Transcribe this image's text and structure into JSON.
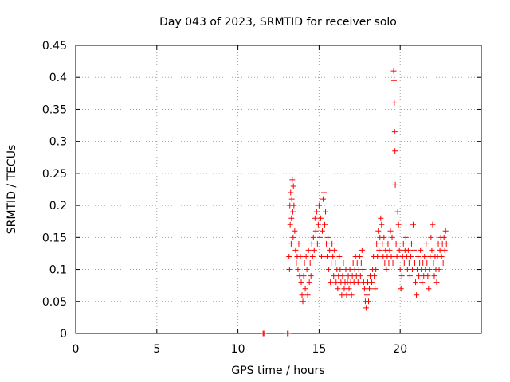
{
  "chart_data": {
    "type": "scatter",
    "title": "Day 043 of 2023, SRMTID for receiver solo",
    "xlabel": "GPS time / hours",
    "ylabel": "SRMTID / TECUs",
    "xlim": [
      0,
      25
    ],
    "ylim": [
      0,
      0.45
    ],
    "x_ticks": [
      "0",
      "5",
      "10",
      "15",
      "20"
    ],
    "x_tick_values": [
      0,
      5,
      10,
      15,
      20
    ],
    "y_ticks": [
      "0",
      "0.05",
      "0.1",
      "0.15",
      "0.2",
      "0.25",
      "0.3",
      "0.35",
      "0.4",
      "0.45"
    ],
    "y_tick_values": [
      0,
      0.05,
      0.1,
      0.15,
      0.2,
      0.25,
      0.3,
      0.35,
      0.4,
      0.45
    ],
    "grid": true,
    "marker": "+",
    "color": "#ff0000",
    "series": [
      {
        "points": [
          [
            11.55,
            0.0
          ],
          [
            11.6,
            0.0
          ],
          [
            13.05,
            0.0
          ],
          [
            13.1,
            0.0
          ],
          [
            13.15,
            0.12
          ],
          [
            13.18,
            0.1
          ],
          [
            13.2,
            0.2
          ],
          [
            13.22,
            0.17
          ],
          [
            13.25,
            0.22
          ],
          [
            13.28,
            0.14
          ],
          [
            13.3,
            0.18
          ],
          [
            13.32,
            0.21
          ],
          [
            13.35,
            0.24
          ],
          [
            13.38,
            0.19
          ],
          [
            13.4,
            0.15
          ],
          [
            13.42,
            0.23
          ],
          [
            13.45,
            0.2
          ],
          [
            13.5,
            0.16
          ],
          [
            13.55,
            0.13
          ],
          [
            13.6,
            0.11
          ],
          [
            13.65,
            0.12
          ],
          [
            13.7,
            0.1
          ],
          [
            13.75,
            0.14
          ],
          [
            13.8,
            0.09
          ],
          [
            13.85,
            0.12
          ],
          [
            13.9,
            0.08
          ],
          [
            13.95,
            0.06
          ],
          [
            14.0,
            0.05
          ],
          [
            14.05,
            0.09
          ],
          [
            14.1,
            0.11
          ],
          [
            14.15,
            0.07
          ],
          [
            14.2,
            0.12
          ],
          [
            14.25,
            0.1
          ],
          [
            14.3,
            0.06
          ],
          [
            14.35,
            0.13
          ],
          [
            14.4,
            0.08
          ],
          [
            14.45,
            0.11
          ],
          [
            14.5,
            0.09
          ],
          [
            14.55,
            0.14
          ],
          [
            14.6,
            0.12
          ],
          [
            14.65,
            0.15
          ],
          [
            14.7,
            0.13
          ],
          [
            14.75,
            0.18
          ],
          [
            14.8,
            0.16
          ],
          [
            14.85,
            0.19
          ],
          [
            14.9,
            0.14
          ],
          [
            14.95,
            0.17
          ],
          [
            15.0,
            0.2
          ],
          [
            15.05,
            0.15
          ],
          [
            15.1,
            0.18
          ],
          [
            15.15,
            0.12
          ],
          [
            15.2,
            0.16
          ],
          [
            15.25,
            0.21
          ],
          [
            15.3,
            0.22
          ],
          [
            15.35,
            0.17
          ],
          [
            15.4,
            0.19
          ],
          [
            15.45,
            0.14
          ],
          [
            15.5,
            0.12
          ],
          [
            15.55,
            0.15
          ],
          [
            15.6,
            0.1
          ],
          [
            15.65,
            0.13
          ],
          [
            15.7,
            0.08
          ],
          [
            15.75,
            0.11
          ],
          [
            15.8,
            0.14
          ],
          [
            15.85,
            0.12
          ],
          [
            15.9,
            0.09
          ],
          [
            15.95,
            0.13
          ],
          [
            16.0,
            0.11
          ],
          [
            16.05,
            0.08
          ],
          [
            16.1,
            0.1
          ],
          [
            16.15,
            0.07
          ],
          [
            16.2,
            0.09
          ],
          [
            16.25,
            0.12
          ],
          [
            16.3,
            0.1
          ],
          [
            16.35,
            0.08
          ],
          [
            16.4,
            0.06
          ],
          [
            16.45,
            0.09
          ],
          [
            16.5,
            0.11
          ],
          [
            16.55,
            0.07
          ],
          [
            16.6,
            0.08
          ],
          [
            16.65,
            0.1
          ],
          [
            16.7,
            0.06
          ],
          [
            16.75,
            0.08
          ],
          [
            16.8,
            0.09
          ],
          [
            16.85,
            0.07
          ],
          [
            16.9,
            0.1
          ],
          [
            16.95,
            0.08
          ],
          [
            17.0,
            0.06
          ],
          [
            17.05,
            0.09
          ],
          [
            17.1,
            0.11
          ],
          [
            17.15,
            0.08
          ],
          [
            17.2,
            0.1
          ],
          [
            17.25,
            0.12
          ],
          [
            17.3,
            0.09
          ],
          [
            17.35,
            0.11
          ],
          [
            17.4,
            0.08
          ],
          [
            17.45,
            0.1
          ],
          [
            17.5,
            0.12
          ],
          [
            17.55,
            0.09
          ],
          [
            17.6,
            0.11
          ],
          [
            17.65,
            0.13
          ],
          [
            17.7,
            0.1
          ],
          [
            17.75,
            0.08
          ],
          [
            17.8,
            0.07
          ],
          [
            17.85,
            0.05
          ],
          [
            17.9,
            0.04
          ],
          [
            17.95,
            0.06
          ],
          [
            18.0,
            0.08
          ],
          [
            18.05,
            0.05
          ],
          [
            18.1,
            0.07
          ],
          [
            18.15,
            0.09
          ],
          [
            18.2,
            0.11
          ],
          [
            18.25,
            0.08
          ],
          [
            18.3,
            0.1
          ],
          [
            18.35,
            0.12
          ],
          [
            18.4,
            0.09
          ],
          [
            18.45,
            0.07
          ],
          [
            18.5,
            0.1
          ],
          [
            18.55,
            0.14
          ],
          [
            18.6,
            0.12
          ],
          [
            18.65,
            0.16
          ],
          [
            18.7,
            0.13
          ],
          [
            18.75,
            0.15
          ],
          [
            18.8,
            0.18
          ],
          [
            18.85,
            0.17
          ],
          [
            18.9,
            0.14
          ],
          [
            18.95,
            0.12
          ],
          [
            19.0,
            0.15
          ],
          [
            19.05,
            0.11
          ],
          [
            19.1,
            0.13
          ],
          [
            19.15,
            0.1
          ],
          [
            19.2,
            0.12
          ],
          [
            19.25,
            0.14
          ],
          [
            19.3,
            0.11
          ],
          [
            19.35,
            0.13
          ],
          [
            19.4,
            0.16
          ],
          [
            19.45,
            0.12
          ],
          [
            19.5,
            0.15
          ],
          [
            19.55,
            0.11
          ],
          [
            19.6,
            0.41
          ],
          [
            19.62,
            0.395
          ],
          [
            19.64,
            0.36
          ],
          [
            19.66,
            0.315
          ],
          [
            19.68,
            0.285
          ],
          [
            19.7,
            0.232
          ],
          [
            19.75,
            0.14
          ],
          [
            19.8,
            0.12
          ],
          [
            19.85,
            0.19
          ],
          [
            19.9,
            0.17
          ],
          [
            19.95,
            0.13
          ],
          [
            20.0,
            0.1
          ],
          [
            20.05,
            0.07
          ],
          [
            20.1,
            0.09
          ],
          [
            20.15,
            0.12
          ],
          [
            20.2,
            0.14
          ],
          [
            20.25,
            0.11
          ],
          [
            20.3,
            0.13
          ],
          [
            20.35,
            0.15
          ],
          [
            20.4,
            0.12
          ],
          [
            20.45,
            0.1
          ],
          [
            20.5,
            0.13
          ],
          [
            20.55,
            0.11
          ],
          [
            20.6,
            0.09
          ],
          [
            20.65,
            0.12
          ],
          [
            20.7,
            0.14
          ],
          [
            20.75,
            0.1
          ],
          [
            20.8,
            0.17
          ],
          [
            20.85,
            0.13
          ],
          [
            20.9,
            0.11
          ],
          [
            20.95,
            0.08
          ],
          [
            21.0,
            0.06
          ],
          [
            21.05,
            0.1
          ],
          [
            21.1,
            0.12
          ],
          [
            21.15,
            0.09
          ],
          [
            21.2,
            0.11
          ],
          [
            21.25,
            0.13
          ],
          [
            21.3,
            0.1
          ],
          [
            21.35,
            0.08
          ],
          [
            21.4,
            0.11
          ],
          [
            21.45,
            0.09
          ],
          [
            21.5,
            0.12
          ],
          [
            21.55,
            0.1
          ],
          [
            21.6,
            0.14
          ],
          [
            21.65,
            0.11
          ],
          [
            21.7,
            0.09
          ],
          [
            21.75,
            0.07
          ],
          [
            21.8,
            0.1
          ],
          [
            21.85,
            0.12
          ],
          [
            21.9,
            0.15
          ],
          [
            21.95,
            0.13
          ],
          [
            22.0,
            0.17
          ],
          [
            22.05,
            0.11
          ],
          [
            22.1,
            0.09
          ],
          [
            22.15,
            0.12
          ],
          [
            22.2,
            0.1
          ],
          [
            22.25,
            0.08
          ],
          [
            22.3,
            0.12
          ],
          [
            22.35,
            0.14
          ],
          [
            22.4,
            0.1
          ],
          [
            22.45,
            0.13
          ],
          [
            22.5,
            0.15
          ],
          [
            22.55,
            0.12
          ],
          [
            22.6,
            0.14
          ],
          [
            22.65,
            0.11
          ],
          [
            22.7,
            0.15
          ],
          [
            22.75,
            0.13
          ],
          [
            22.8,
            0.16
          ],
          [
            22.85,
            0.14
          ]
        ]
      }
    ]
  }
}
